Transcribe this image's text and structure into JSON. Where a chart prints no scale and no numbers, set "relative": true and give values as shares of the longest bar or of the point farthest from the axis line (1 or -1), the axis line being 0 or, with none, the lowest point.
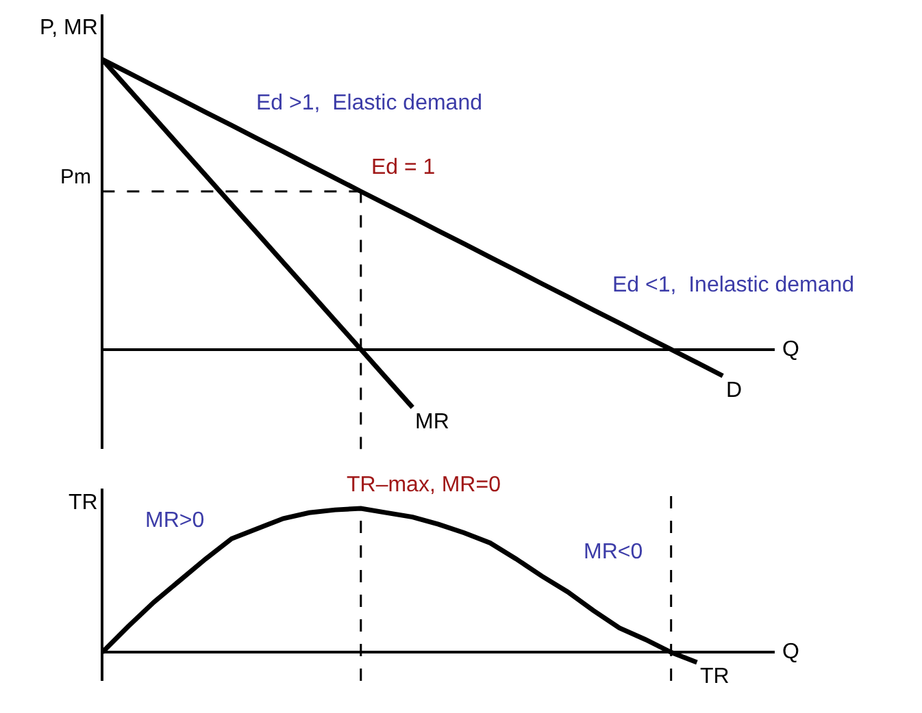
{
  "chart_data": [
    {
      "type": "line",
      "relative": true,
      "ylabel": "P, MR",
      "xlabel": "Q",
      "marker": "none",
      "line_style": "solid",
      "categories": [
        null,
        null,
        null,
        null,
        null,
        null,
        null,
        null,
        null,
        null,
        null,
        null,
        null,
        null,
        null,
        null,
        null,
        null,
        null,
        null,
        null,
        null,
        null,
        null,
        null,
        null,
        null
      ],
      "series": [
        {
          "name": "D",
          "color": "#000000",
          "values": [
            1,
            0.955,
            0.909,
            0.864,
            0.818,
            0.773,
            0.727,
            0.682,
            0.636,
            0.591,
            0.545,
            0.5,
            0.455,
            0.409,
            0.364,
            0.318,
            0.273,
            0.227,
            0.182,
            0.136,
            0.091,
            0.045,
            0,
            -0.045,
            -0.091,
            null,
            null
          ]
        },
        {
          "name": "MR",
          "color": "#000000",
          "values": [
            1,
            0.9,
            0.8,
            0.7,
            0.6,
            0.5,
            0.4,
            0.3,
            0.2,
            0.1,
            0,
            -0.1,
            -0.2,
            null,
            null,
            null,
            null,
            null,
            null,
            null,
            null,
            null,
            null,
            null,
            null,
            null,
            null
          ]
        }
      ],
      "ref_lines": [
        {
          "axis": "y",
          "value": 0.545,
          "label": "Pm",
          "color": "#000000",
          "line_style": "dashed"
        }
      ],
      "annotations": [
        "Ed >1,  Elastic demand",
        "Ed = 1",
        "Ed <1,  Inelastic demand"
      ]
    },
    {
      "type": "line",
      "relative": true,
      "ylabel": "TR",
      "xlabel": "Q",
      "marker": "none",
      "line_style": "solid",
      "categories": [
        null,
        null,
        null,
        null,
        null,
        null,
        null,
        null,
        null,
        null,
        null,
        null,
        null,
        null,
        null,
        null,
        null,
        null,
        null,
        null,
        null,
        null,
        null,
        null,
        null,
        null,
        null
      ],
      "series": [
        {
          "name": "TR",
          "color": "#000000",
          "values": [
            0,
            0.18,
            0.35,
            0.5,
            0.65,
            0.79,
            0.86,
            0.93,
            0.97,
            0.99,
            1,
            0.97,
            0.94,
            0.89,
            0.83,
            0.76,
            0.65,
            0.53,
            0.42,
            0.29,
            0.17,
            0.09,
            0,
            -0.07,
            null,
            null,
            null
          ]
        }
      ],
      "annotations": [
        "TR–max, MR=0",
        "MR>0",
        "MR<0"
      ]
    }
  ]
}
